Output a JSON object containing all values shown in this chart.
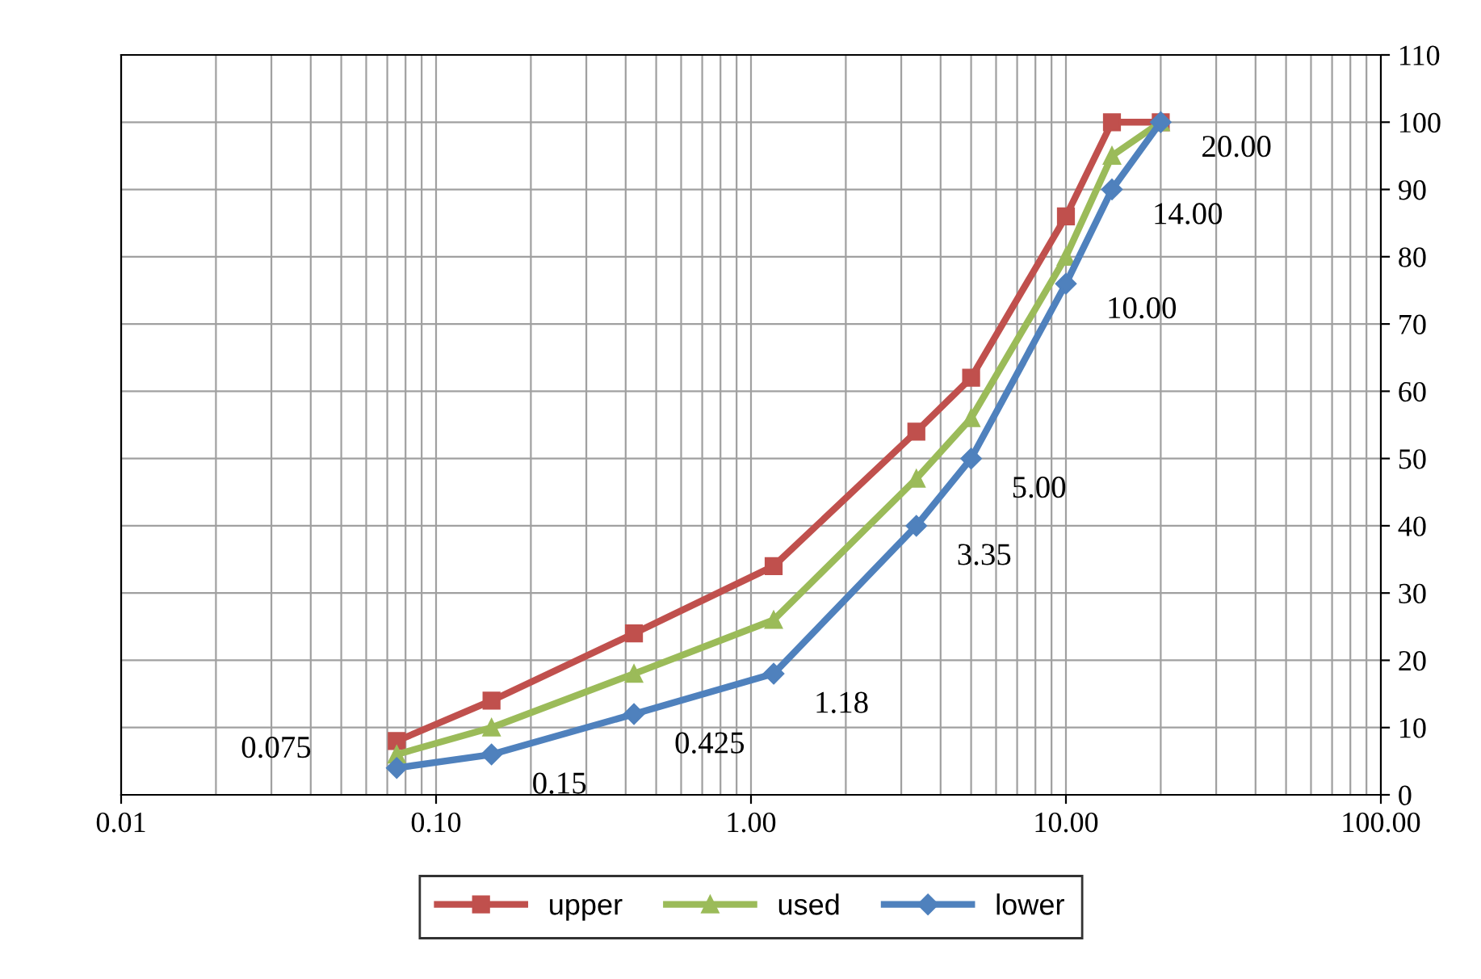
{
  "chart_data": {
    "type": "line",
    "x": [
      0.075,
      0.15,
      0.425,
      1.18,
      3.35,
      5,
      10,
      14,
      20
    ],
    "series": [
      {
        "name": "upper",
        "color": "#c0504d",
        "marker": "square",
        "values": [
          8,
          14,
          24,
          34,
          54,
          62,
          86,
          100,
          100
        ]
      },
      {
        "name": "used",
        "color": "#9bbb59",
        "marker": "triangle",
        "values": [
          6,
          10,
          18,
          26,
          47,
          56,
          80,
          95,
          100
        ]
      },
      {
        "name": "lower",
        "color": "#4f81bd",
        "marker": "diamond",
        "values": [
          4,
          6,
          12,
          18,
          40,
          50,
          76,
          90,
          100
        ]
      }
    ],
    "log": "x",
    "xlim": [
      0.01,
      100
    ],
    "xticks": [
      0.01,
      {
        "value": 0.1,
        "label": "0.10"
      },
      {
        "value": 1,
        "label": "1.00"
      },
      {
        "value": 10,
        "label": "10.00"
      },
      {
        "value": 100,
        "label": "100.00"
      }
    ],
    "ylim": [
      0,
      110
    ],
    "yticks": [
      0,
      10,
      20,
      30,
      40,
      50,
      60,
      70,
      80,
      90,
      100,
      110
    ],
    "grid": true,
    "legend": "bottom",
    "line_style": "solid",
    "annotations": [
      {
        "text": "0.075",
        "x": 0.075,
        "y": 4
      },
      {
        "text": "0.15",
        "x": 0.15,
        "y": 6
      },
      {
        "text": "0.425",
        "x": 0.425,
        "y": 12
      },
      {
        "text": "1.18",
        "x": 1.18,
        "y": 18
      },
      {
        "text": "3.35",
        "x": 3.35,
        "y": 40
      },
      {
        "text": "5.00",
        "x": 5,
        "y": 50
      },
      {
        "text": "10.00",
        "x": 10,
        "y": 76
      },
      {
        "text": "14.00",
        "x": 14,
        "y": 90
      },
      {
        "text": "20.00",
        "x": 20,
        "y": 100
      }
    ]
  }
}
